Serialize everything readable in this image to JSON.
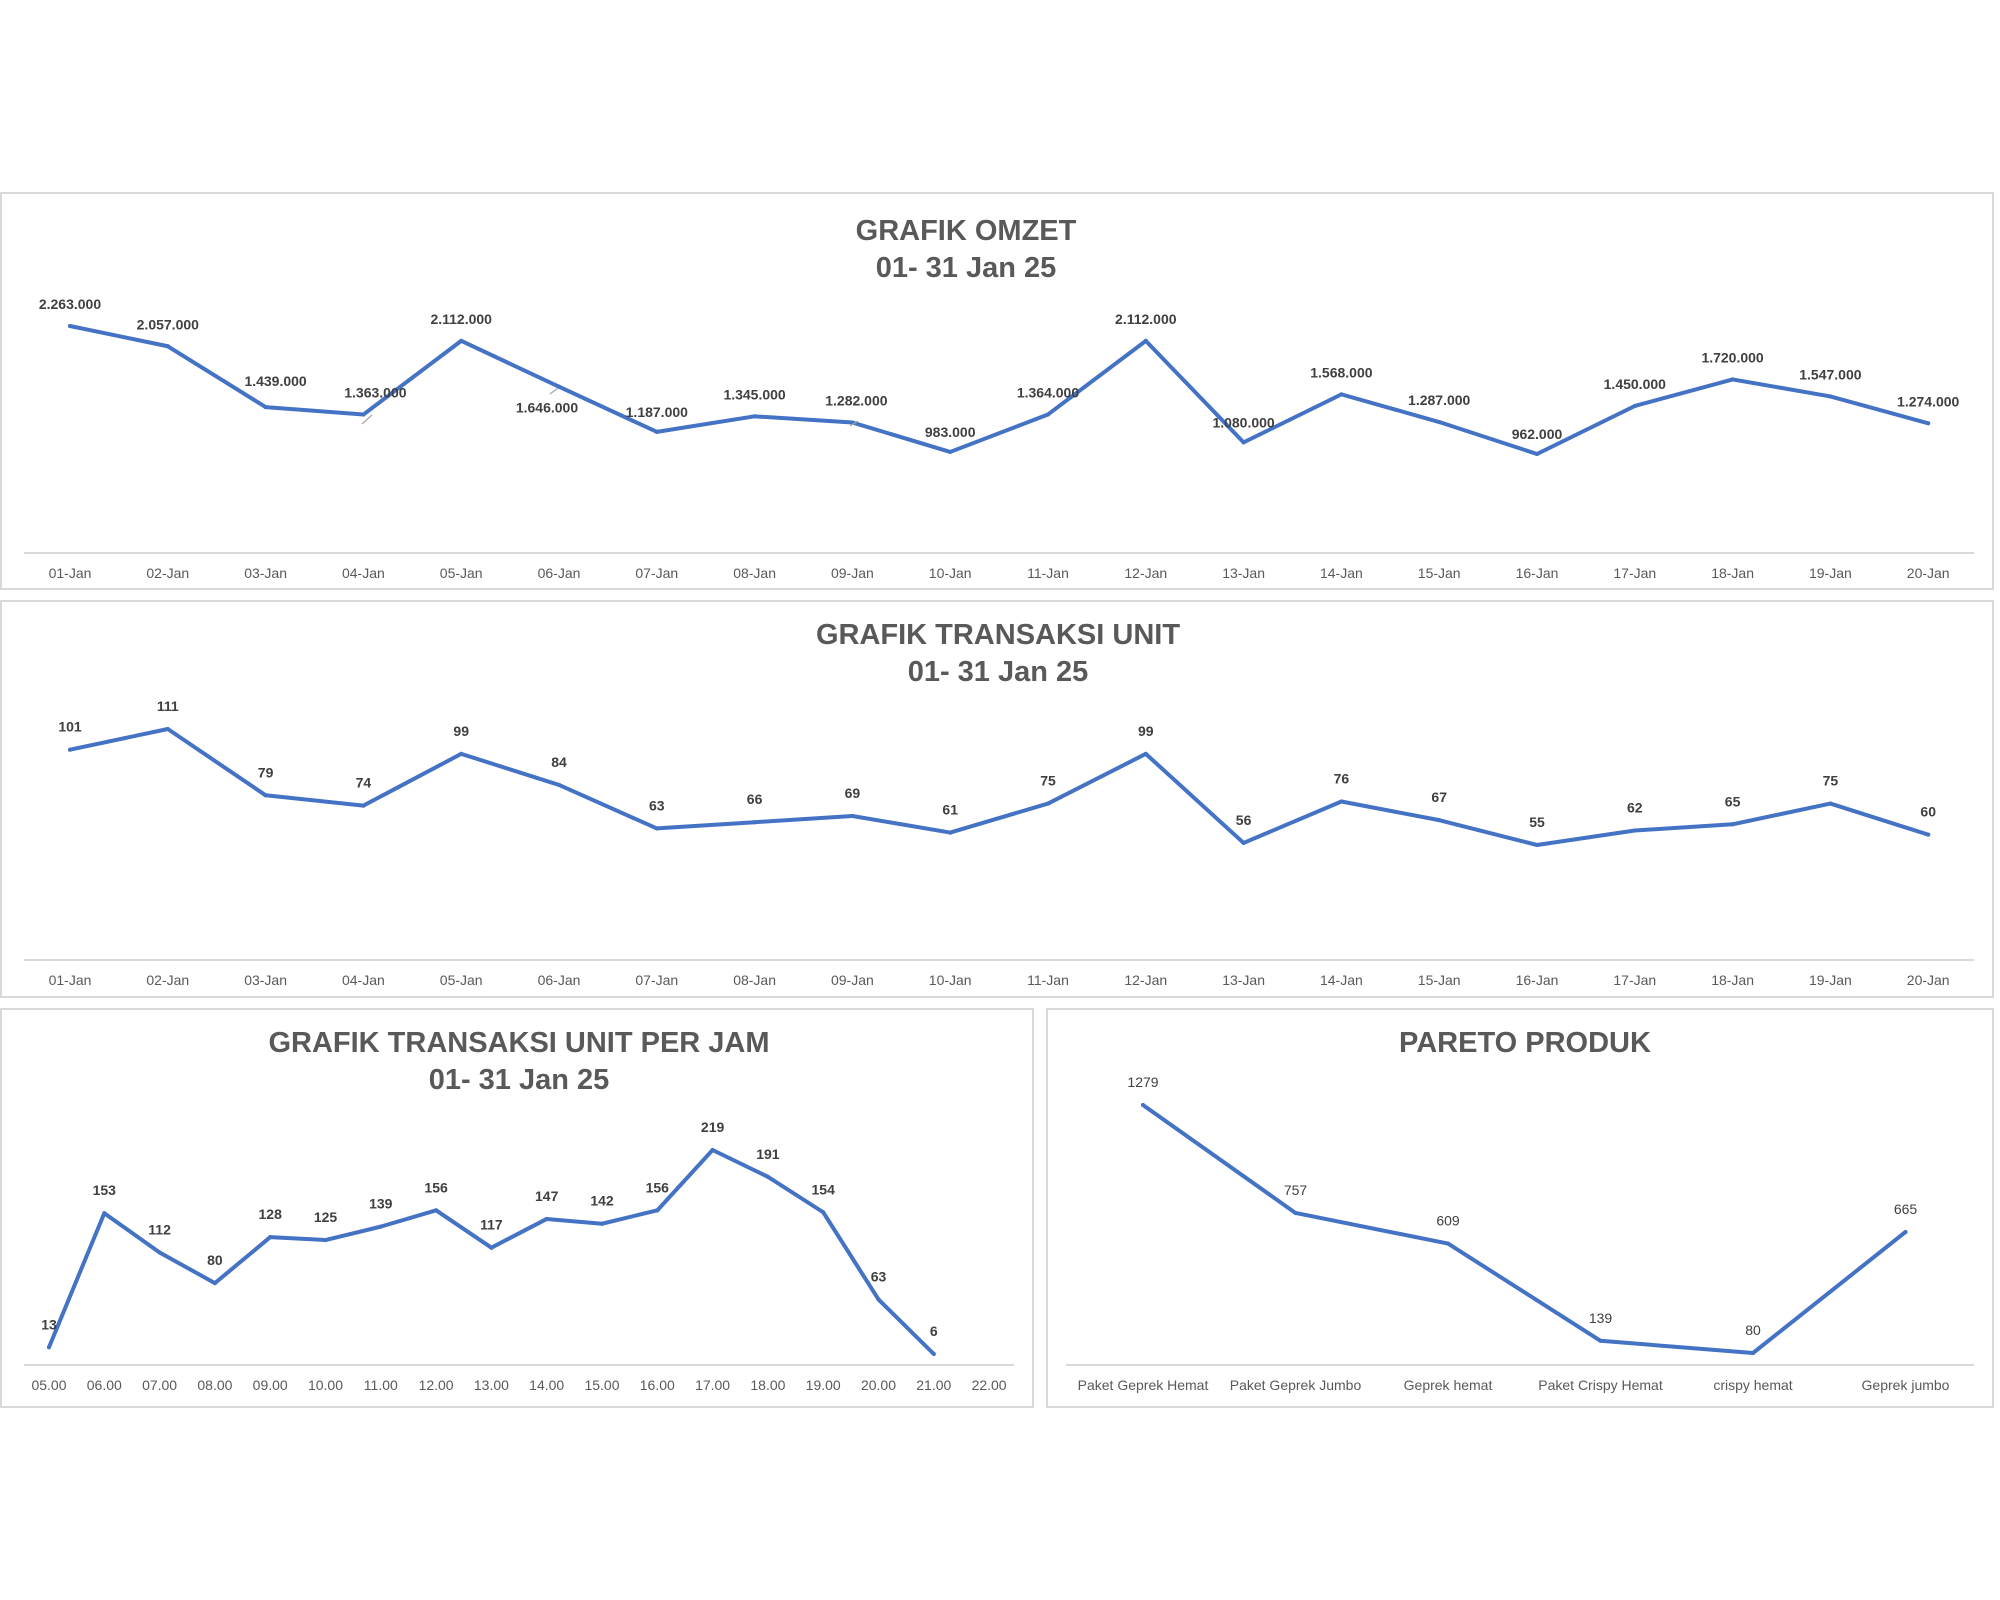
{
  "chart_data": [
    {
      "type": "line",
      "title": "GRAFIK OMZET",
      "subtitle": "01- 31 Jan 25",
      "categories": [
        "01-Jan",
        "02-Jan",
        "03-Jan",
        "04-Jan",
        "05-Jan",
        "06-Jan",
        "07-Jan",
        "08-Jan",
        "09-Jan",
        "10-Jan",
        "11-Jan",
        "12-Jan",
        "13-Jan",
        "14-Jan",
        "15-Jan",
        "16-Jan",
        "17-Jan",
        "18-Jan",
        "19-Jan",
        "20-Jan"
      ],
      "values": [
        2263000,
        2057000,
        1439000,
        1363000,
        2112000,
        1646000,
        1187000,
        1345000,
        1282000,
        983000,
        1364000,
        2112000,
        1080000,
        1568000,
        1287000,
        962000,
        1450000,
        1720000,
        1547000,
        1274000
      ],
      "labels": [
        "2.263.000",
        "2.057.000",
        "1.439.000",
        "1.363.000",
        "2.112.000",
        "1.646.000",
        "1.187.000",
        "1.345.000",
        "1.282.000",
        "983.000",
        "1.364.000",
        "2.112.000",
        "1.080.000",
        "1.568.000",
        "1.287.000",
        "962.000",
        "1.450.000",
        "1.720.000",
        "1.547.000",
        "1.274.000"
      ],
      "color": "#4472c4",
      "grid": false,
      "legend": "none"
    },
    {
      "type": "line",
      "title": "GRAFIK TRANSAKSI UNIT",
      "subtitle": "01- 31 Jan 25",
      "categories": [
        "01-Jan",
        "02-Jan",
        "03-Jan",
        "04-Jan",
        "05-Jan",
        "06-Jan",
        "07-Jan",
        "08-Jan",
        "09-Jan",
        "10-Jan",
        "11-Jan",
        "12-Jan",
        "13-Jan",
        "14-Jan",
        "15-Jan",
        "16-Jan",
        "17-Jan",
        "18-Jan",
        "19-Jan",
        "20-Jan"
      ],
      "values": [
        101,
        111,
        79,
        74,
        99,
        84,
        63,
        66,
        69,
        61,
        75,
        99,
        56,
        76,
        67,
        55,
        62,
        65,
        75,
        60
      ],
      "labels": [
        "101",
        "111",
        "79",
        "74",
        "99",
        "84",
        "63",
        "66",
        "69",
        "61",
        "75",
        "99",
        "56",
        "76",
        "67",
        "55",
        "62",
        "65",
        "75",
        "60"
      ],
      "color": "#4472c4",
      "grid": false,
      "legend": "none"
    },
    {
      "type": "line",
      "title": "GRAFIK TRANSAKSI UNIT PER JAM",
      "subtitle": "01- 31 Jan 25",
      "categories": [
        "05.00",
        "06.00",
        "07.00",
        "08.00",
        "09.00",
        "10.00",
        "11.00",
        "12.00",
        "13.00",
        "14.00",
        "15.00",
        "16.00",
        "17.00",
        "18.00",
        "19.00",
        "20.00",
        "21.00",
        "22.00"
      ],
      "values": [
        13,
        153,
        112,
        80,
        128,
        125,
        139,
        156,
        117,
        147,
        142,
        156,
        219,
        191,
        154,
        63,
        6,
        null
      ],
      "labels": [
        "13",
        "153",
        "112",
        "80",
        "128",
        "125",
        "139",
        "156",
        "117",
        "147",
        "142",
        "156",
        "219",
        "191",
        "154",
        "63",
        "6",
        ""
      ],
      "color": "#4472c4",
      "grid": false,
      "legend": "none"
    },
    {
      "type": "line",
      "title": "PARETO PRODUK",
      "subtitle": "",
      "categories": [
        "Paket Geprek Hemat",
        "Paket Geprek Jumbo",
        "Geprek hemat",
        "Paket Crispy Hemat",
        "crispy hemat",
        "Geprek jumbo"
      ],
      "values": [
        1279,
        757,
        609,
        139,
        80,
        665
      ],
      "labels": [
        "1279",
        "757",
        "609",
        "139",
        "80",
        "665"
      ],
      "color": "#4472c4",
      "grid": false,
      "legend": "none"
    }
  ]
}
